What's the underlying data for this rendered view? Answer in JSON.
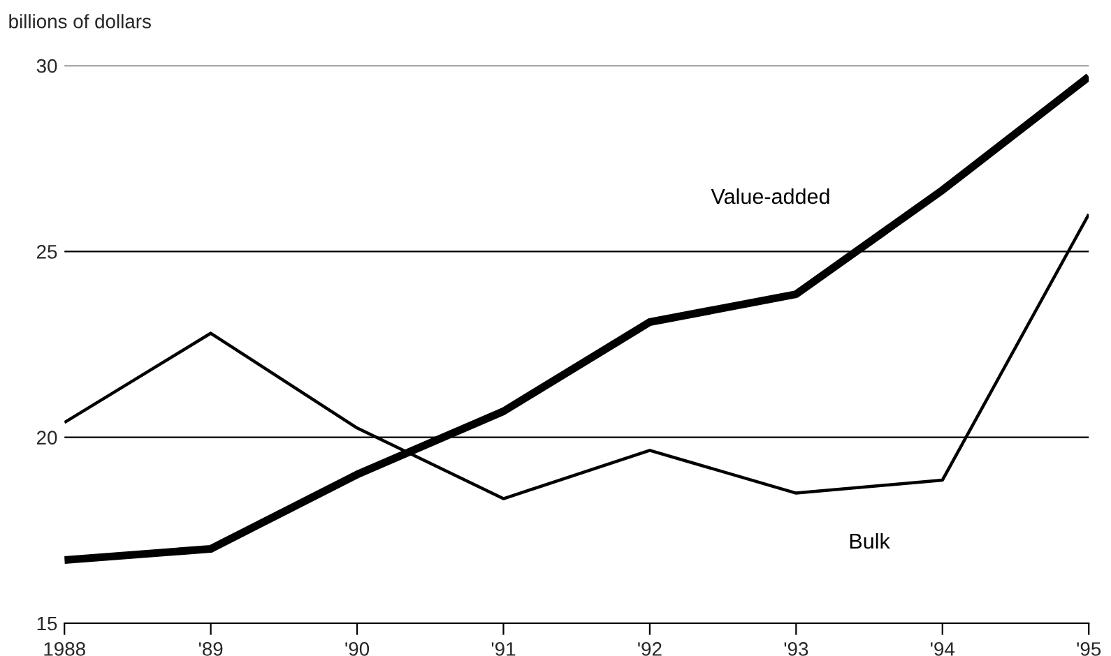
{
  "chart_data": {
    "type": "line",
    "ylabel": "billions of dollars",
    "categories": [
      "1988",
      "'89",
      "'90",
      "'91",
      "'92",
      "'93",
      "'94",
      "'95"
    ],
    "series": [
      {
        "name": "Value-added",
        "color": "#000000",
        "values": [
          16.7,
          17.0,
          19.0,
          20.7,
          23.1,
          23.85,
          26.65,
          29.7
        ]
      },
      {
        "name": "Bulk",
        "color": "#000000",
        "values": [
          20.4,
          22.8,
          20.25,
          18.35,
          19.65,
          18.5,
          18.85,
          26.0
        ]
      }
    ],
    "ylim": [
      15,
      30
    ],
    "yticks": [
      15,
      20,
      25,
      30
    ],
    "grid": "y",
    "legend": false,
    "marker": "none",
    "line_style": "solid"
  }
}
